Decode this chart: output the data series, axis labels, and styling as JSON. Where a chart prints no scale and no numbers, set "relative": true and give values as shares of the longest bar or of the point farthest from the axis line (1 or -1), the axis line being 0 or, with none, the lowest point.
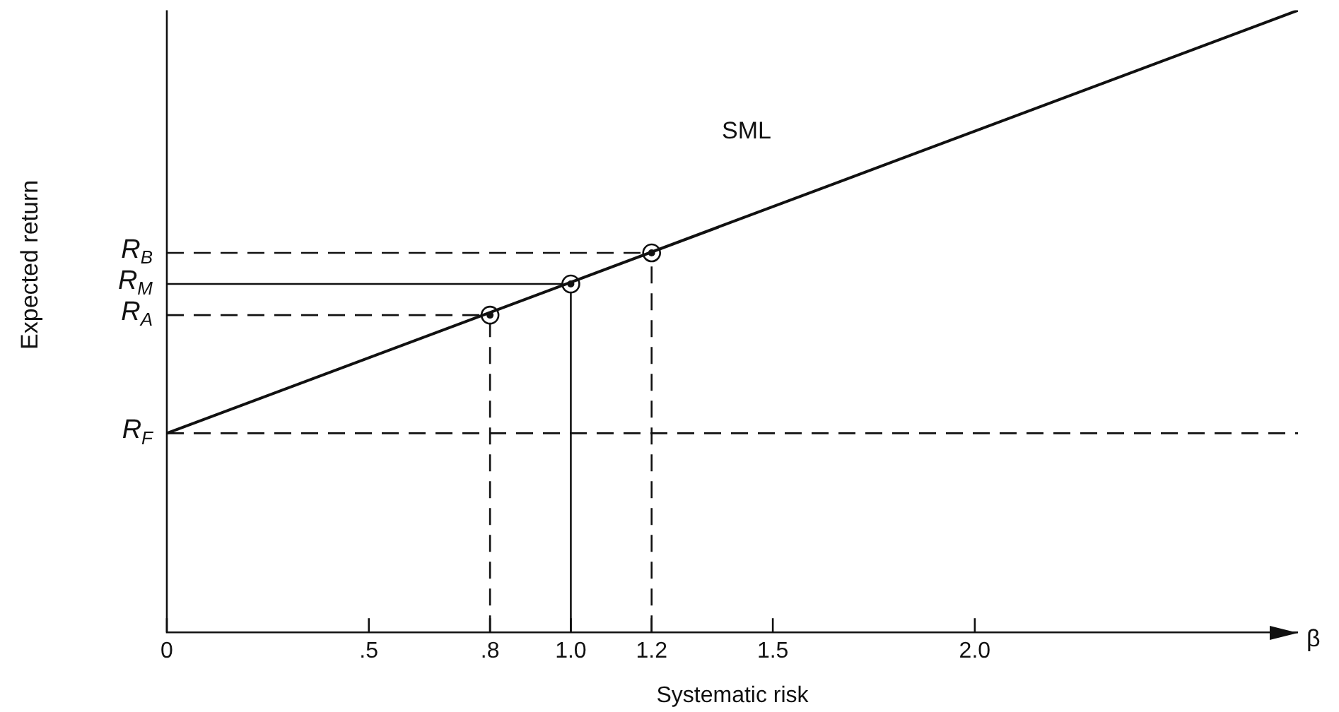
{
  "chart_data": {
    "type": "line",
    "xlabel": "Systematic risk",
    "ylabel": "Expected return",
    "relative": true,
    "xlim": [
      0,
      2.8
    ],
    "xticks": [
      0,
      {
        "value": 0.5,
        "label": ".5"
      },
      {
        "value": 0.8,
        "label": ".8"
      },
      {
        "value": 1,
        "label": "1.0"
      },
      {
        "value": 1.2,
        "label": "1.2"
      },
      {
        "value": 1.5,
        "label": "1.5"
      },
      {
        "value": 2,
        "label": "2.0"
      }
    ],
    "series": [
      {
        "name": "SML",
        "color": "#111111",
        "x": [
          0,
          2.8
        ],
        "values": [
          0.32,
          1.0
        ],
        "marker": "none"
      },
      {
        "type": "scatter",
        "color": "#111111",
        "x": [
          0.8,
          1,
          1.2
        ],
        "values": [
          0.51,
          0.56,
          0.61
        ],
        "marker": "circle"
      }
    ],
    "ref_lines": [
      {
        "axis": "y",
        "value": 0.32,
        "label": "R$_{F}$",
        "line_style": "dashed"
      },
      {
        "axis": "y",
        "value": 0.51,
        "label": "R$_{A}$",
        "line_style": "dashed"
      },
      {
        "axis": "y",
        "value": 0.56,
        "label": "R$_{M}$",
        "line_style": "solid"
      },
      {
        "axis": "y",
        "value": 0.61,
        "label": "R$_{B}$",
        "line_style": "dashed"
      },
      {
        "axis": "x",
        "value": 0.8,
        "line_style": "dashed"
      },
      {
        "axis": "x",
        "value": 1,
        "line_style": "solid"
      },
      {
        "axis": "x",
        "value": 1.2,
        "line_style": "dashed"
      }
    ],
    "annotations": [
      "β"
    ],
    "grid": false,
    "legend": false
  }
}
